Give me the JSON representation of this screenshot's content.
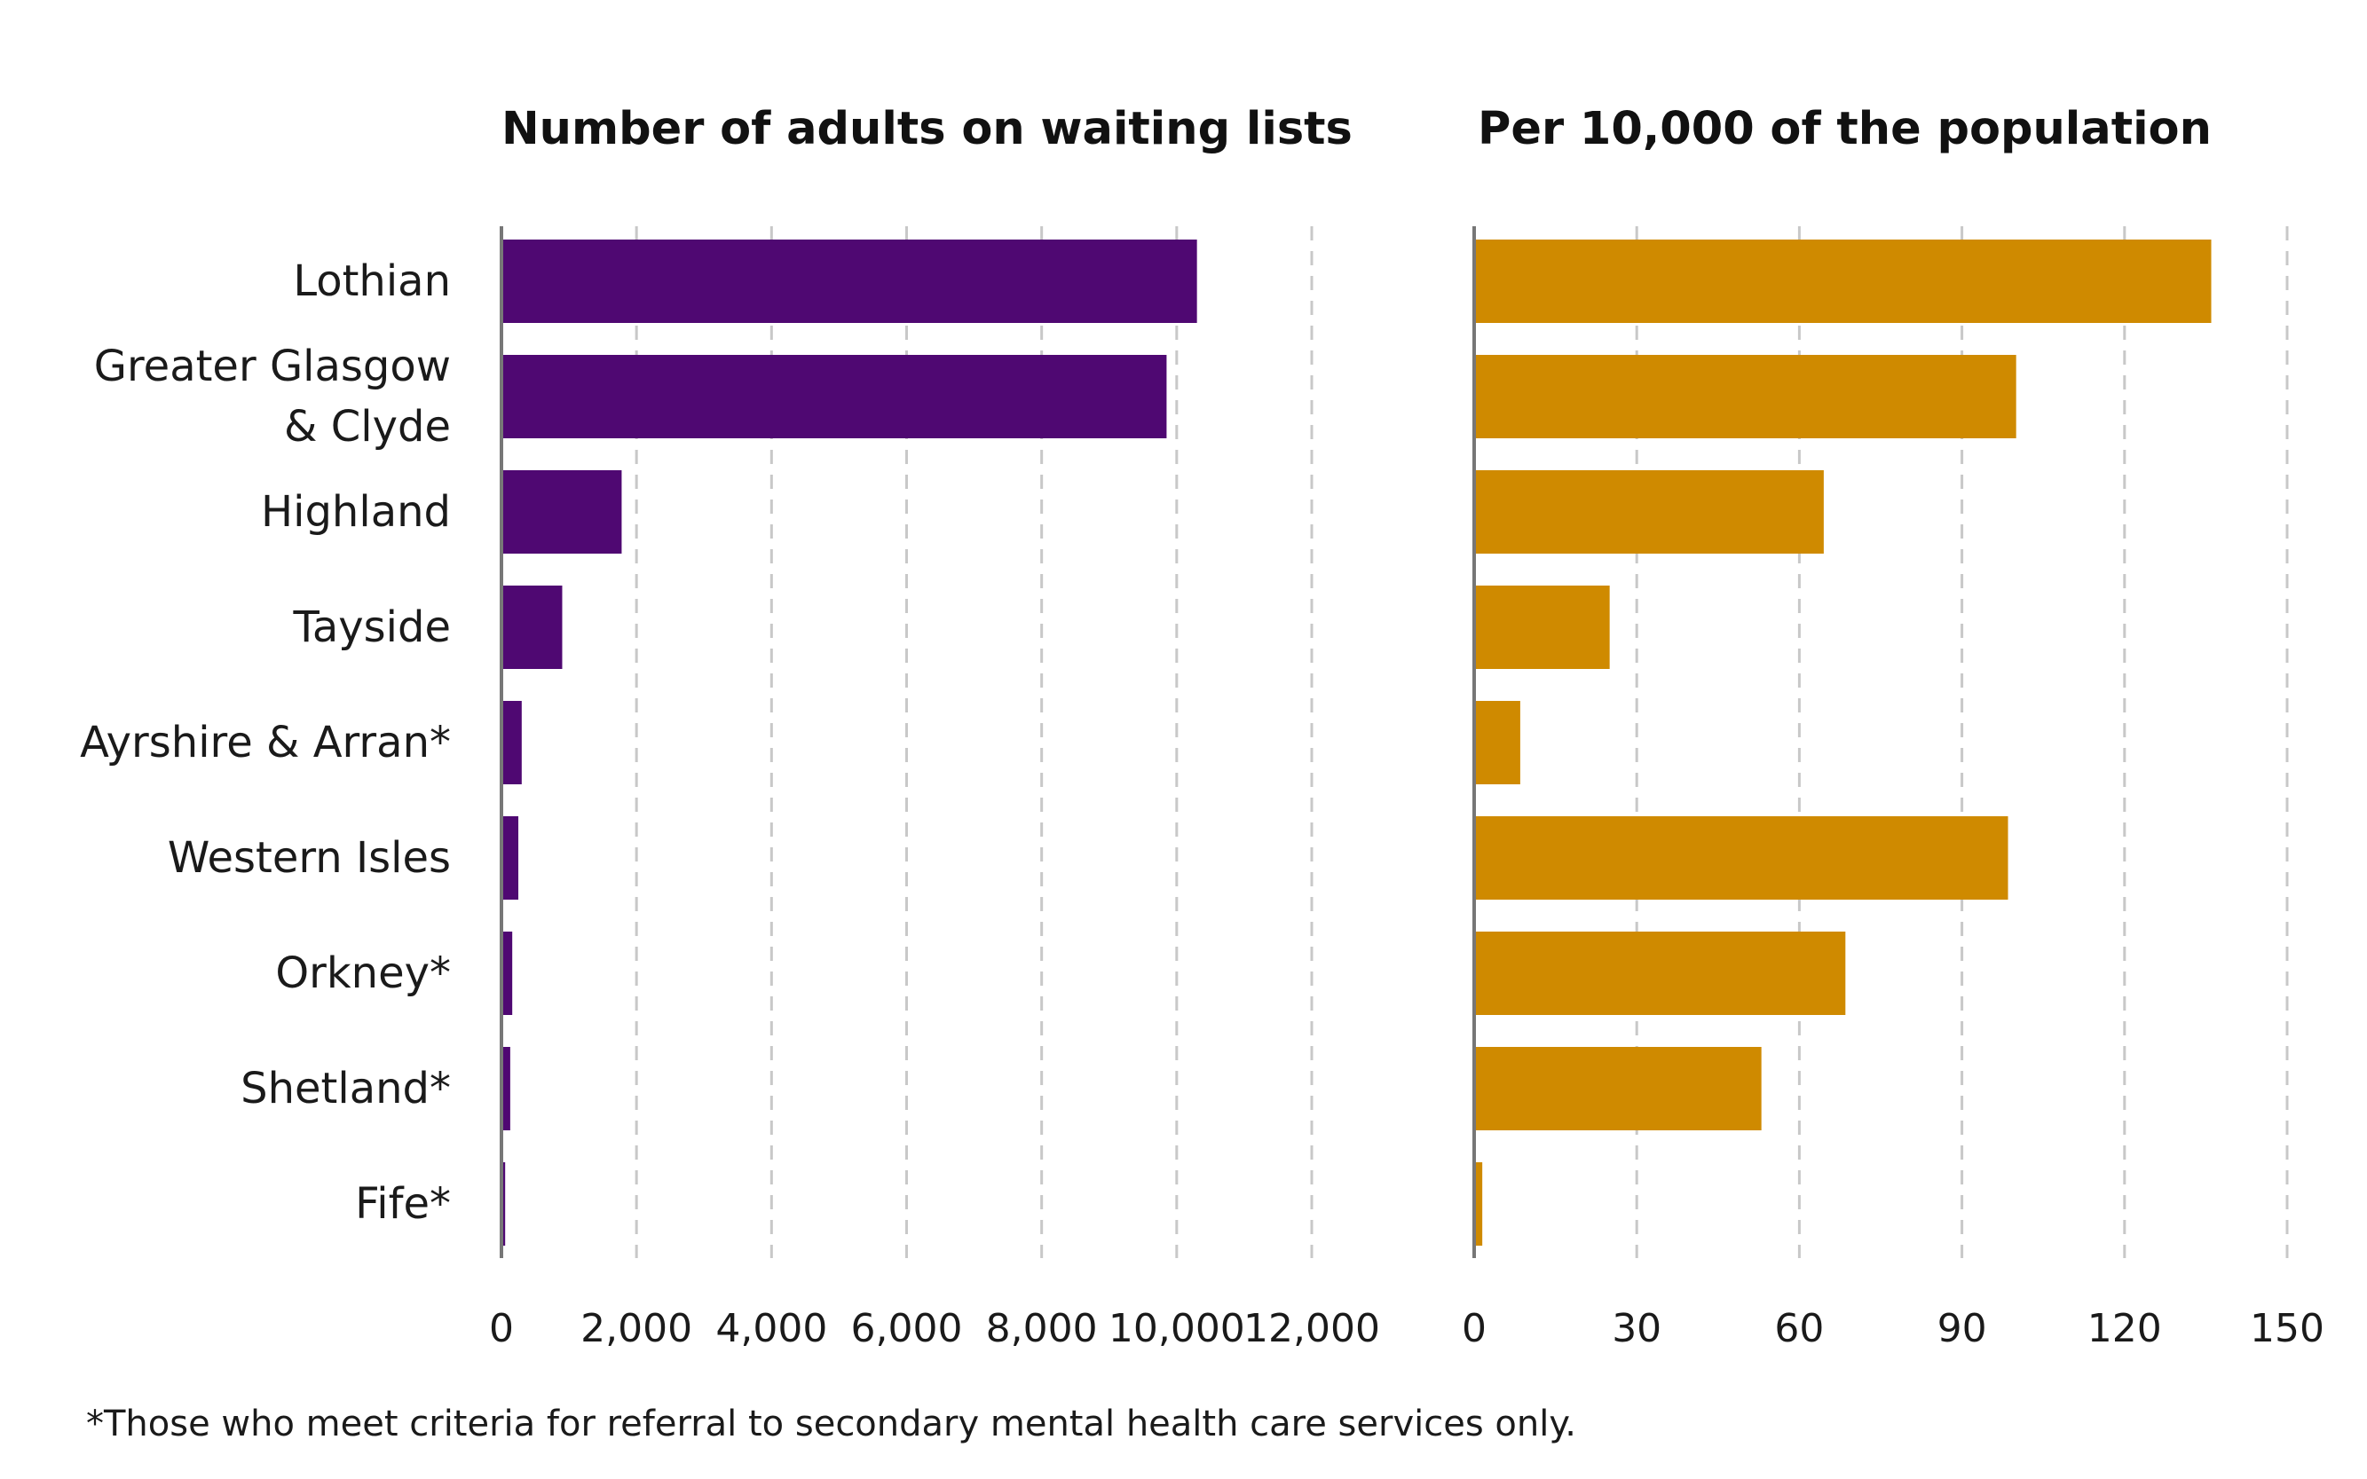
{
  "categories": [
    [
      "Lothian"
    ],
    [
      "Greater Glasgow",
      "& Clyde"
    ],
    [
      "Highland"
    ],
    [
      "Tayside"
    ],
    [
      "Ayrshire & Arran*"
    ],
    [
      "Western Isles"
    ],
    [
      "Orkney*"
    ],
    [
      "Shetland*"
    ],
    [
      "Fife*"
    ]
  ],
  "footnote": "*Those who meet criteria for referral to secondary mental health care services only.",
  "colors": {
    "left_bar": "#4f0872",
    "right_bar": "#cf8a00"
  },
  "chart_data": [
    {
      "type": "bar",
      "orientation": "horizontal",
      "title": "Number of adults on waiting lists",
      "categories": [
        "Lothian",
        "Greater Glasgow & Clyde",
        "Highland",
        "Tayside",
        "Ayrshire & Arran*",
        "Western Isles",
        "Orkney*",
        "Shetland*",
        "Fife*"
      ],
      "values": [
        10300,
        9850,
        1780,
        900,
        300,
        250,
        160,
        130,
        55
      ],
      "xlim": [
        0,
        12000
      ],
      "ticks": [
        0,
        2000,
        4000,
        6000,
        8000,
        10000,
        12000
      ],
      "tick_labels": [
        "0",
        "2,000",
        "4,000",
        "6,000",
        "8,000",
        "10,000",
        "12,000"
      ],
      "grid": true,
      "color": "#4f0872"
    },
    {
      "type": "bar",
      "orientation": "horizontal",
      "title": "Per 10,000 of the population",
      "categories": [
        "Lothian",
        "Greater Glasgow & Clyde",
        "Highland",
        "Tayside",
        "Ayrshire & Arran*",
        "Western Isles",
        "Orkney*",
        "Shetland*",
        "Fife*"
      ],
      "values": [
        136,
        100,
        64.5,
        25,
        8.5,
        98.5,
        68.5,
        53,
        1.5
      ],
      "xlim": [
        0,
        150
      ],
      "ticks": [
        0,
        30,
        60,
        90,
        120,
        150
      ],
      "tick_labels": [
        "0",
        "30",
        "60",
        "90",
        "120",
        "150"
      ],
      "grid": true,
      "color": "#cf8a00"
    }
  ]
}
